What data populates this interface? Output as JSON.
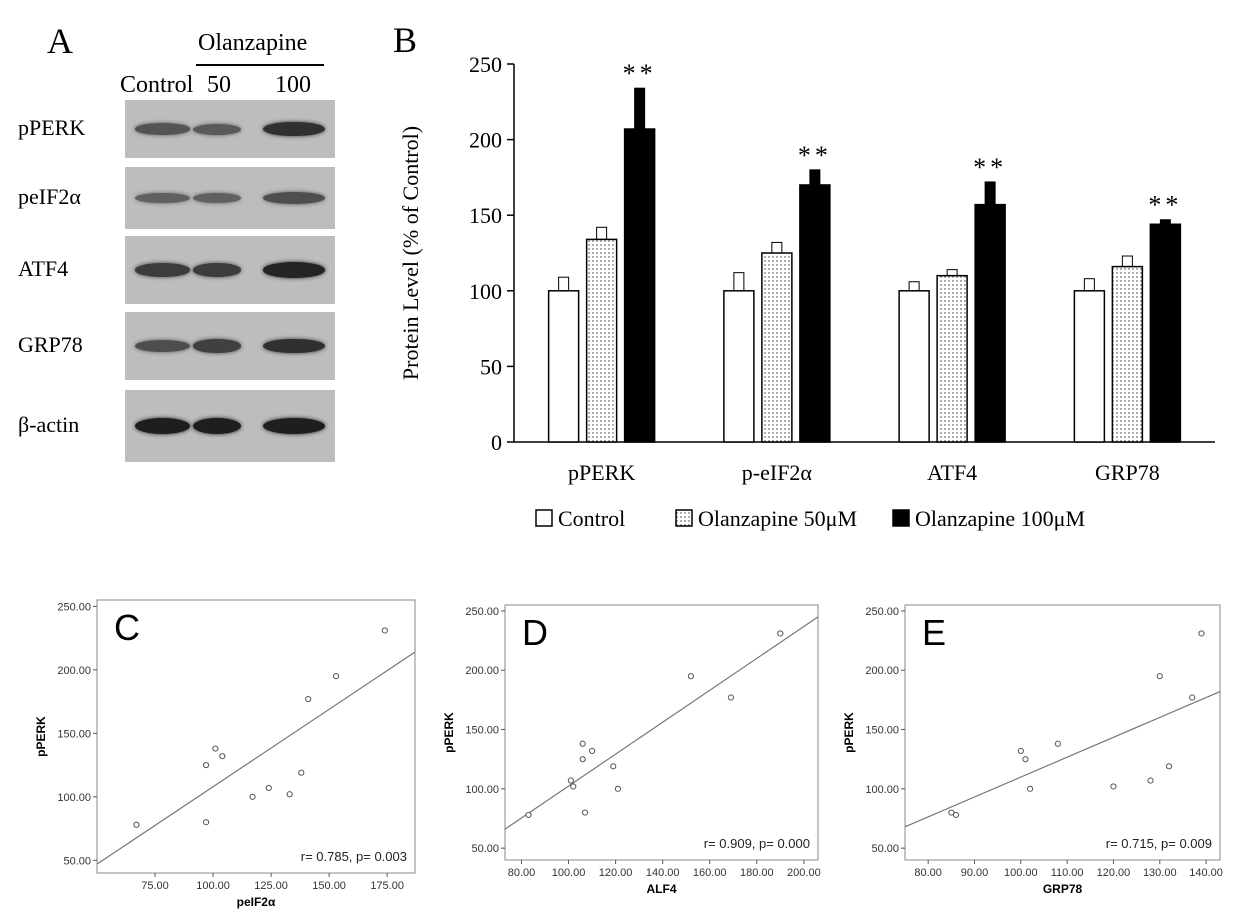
{
  "panel_a": {
    "letter": "A",
    "treatment_label": "Olanzapine",
    "lanes": [
      "Control",
      "50",
      "100"
    ],
    "rows": [
      {
        "label": "pPERK",
        "intensity": [
          0.55,
          0.5,
          0.85
        ]
      },
      {
        "label": "peIF2α",
        "intensity": [
          0.45,
          0.45,
          0.6
        ]
      },
      {
        "label": "ATF4",
        "intensity": [
          0.75,
          0.75,
          0.95
        ]
      },
      {
        "label": "GRP78",
        "intensity": [
          0.6,
          0.72,
          0.85
        ]
      },
      {
        "label": "β-actin",
        "intensity": [
          1.0,
          1.0,
          1.0
        ]
      }
    ]
  },
  "chart_data": [
    {
      "panel": "B",
      "type": "bar",
      "ylabel": "Protein Level (% of Control)",
      "ylim": [
        0,
        250
      ],
      "yticks": [
        0,
        50,
        100,
        150,
        200,
        250
      ],
      "categories": [
        "pPERK",
        "p-eIF2α",
        "ATF4",
        "GRP78"
      ],
      "series": [
        {
          "name": "Control",
          "values": [
            100,
            100,
            100,
            100
          ],
          "errors": [
            9,
            12,
            6,
            8
          ],
          "fill": "#ffffff"
        },
        {
          "name": "Olanzapine 50μM",
          "values": [
            134,
            125,
            110,
            116
          ],
          "errors": [
            8,
            7,
            4,
            7
          ],
          "fill": "dotted"
        },
        {
          "name": "Olanzapine 100μM",
          "values": [
            207,
            170,
            157,
            144
          ],
          "errors": [
            27,
            10,
            15,
            3
          ],
          "fill": "#000000"
        }
      ],
      "annotations": [
        "**",
        "**",
        "**",
        "**"
      ],
      "legend": "bottom"
    },
    {
      "panel": "C",
      "type": "scatter",
      "xlabel": "peIF2α",
      "ylabel": "pPERK",
      "xlim": [
        50,
        187
      ],
      "ylim": [
        40,
        255
      ],
      "xticks": [
        "75.00",
        "100.00",
        "125.00",
        "150.00",
        "175.00"
      ],
      "yticks": [
        "50.00",
        "100.00",
        "150.00",
        "200.00",
        "250.00"
      ],
      "points": [
        [
          67,
          78
        ],
        [
          97,
          80
        ],
        [
          97,
          125
        ],
        [
          101,
          138
        ],
        [
          104,
          132
        ],
        [
          117,
          100
        ],
        [
          124,
          107
        ],
        [
          133,
          102
        ],
        [
          138,
          119
        ],
        [
          141,
          177
        ],
        [
          153,
          195
        ],
        [
          174,
          231
        ]
      ],
      "fit": [
        [
          50,
          47
        ],
        [
          187,
          214
        ]
      ],
      "annotation": "r= 0.785, p= 0.003"
    },
    {
      "panel": "D",
      "type": "scatter",
      "xlabel": "ALF4",
      "ylabel": "pPERK",
      "xlim": [
        73,
        206
      ],
      "ylim": [
        40,
        255
      ],
      "xticks": [
        "80.00",
        "100.00",
        "120.00",
        "140.00",
        "160.00",
        "180.00",
        "200.00"
      ],
      "yticks": [
        "50.00",
        "100.00",
        "150.00",
        "200.00",
        "250.00"
      ],
      "points": [
        [
          83,
          78
        ],
        [
          101,
          107
        ],
        [
          102,
          102
        ],
        [
          106,
          125
        ],
        [
          106,
          138
        ],
        [
          107,
          80
        ],
        [
          110,
          132
        ],
        [
          119,
          119
        ],
        [
          121,
          100
        ],
        [
          152,
          195
        ],
        [
          169,
          177
        ],
        [
          190,
          231
        ]
      ],
      "fit": [
        [
          73,
          66
        ],
        [
          206,
          245
        ]
      ],
      "annotation": "r= 0.909, p= 0.000"
    },
    {
      "panel": "E",
      "type": "scatter",
      "xlabel": "GRP78",
      "ylabel": "pPERK",
      "xlim": [
        75,
        143
      ],
      "ylim": [
        40,
        255
      ],
      "xticks": [
        "80.00",
        "90.00",
        "100.00",
        "110.00",
        "120.00",
        "130.00",
        "140.00"
      ],
      "yticks": [
        "50.00",
        "100.00",
        "150.00",
        "200.00",
        "250.00"
      ],
      "points": [
        [
          85,
          80
        ],
        [
          86,
          78
        ],
        [
          100,
          132
        ],
        [
          101,
          125
        ],
        [
          102,
          100
        ],
        [
          108,
          138
        ],
        [
          120,
          102
        ],
        [
          128,
          107
        ],
        [
          130,
          195
        ],
        [
          132,
          119
        ],
        [
          137,
          177
        ],
        [
          139,
          231
        ]
      ],
      "fit": [
        [
          75,
          68
        ],
        [
          143,
          182
        ]
      ],
      "annotation": "r= 0.715, p= 0.009"
    }
  ]
}
